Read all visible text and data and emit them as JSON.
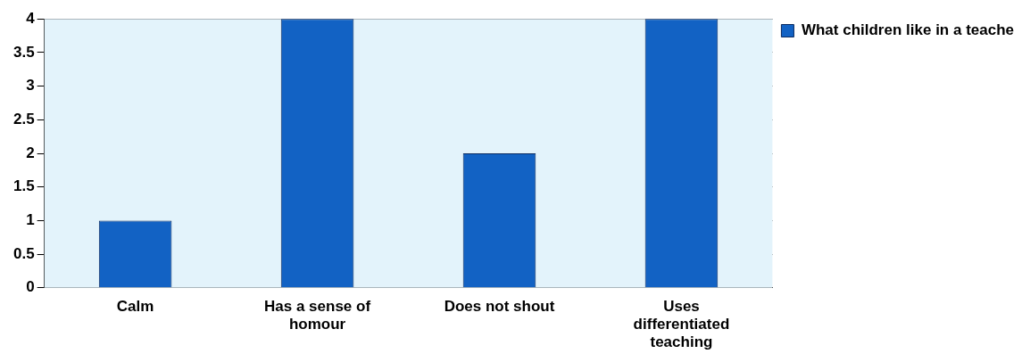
{
  "chart_data": {
    "type": "bar",
    "categories": [
      "Calm",
      "Has a sense of homour",
      "Does not shout",
      "Uses differentiated teaching"
    ],
    "series": [
      {
        "name": "What children like in a teache",
        "color": "#1262c4",
        "values": [
          1,
          4,
          2,
          4
        ]
      }
    ],
    "ylim": [
      0,
      4
    ],
    "yticks": [
      0,
      0.5,
      1,
      1.5,
      2,
      2.5,
      3,
      3.5,
      4
    ],
    "grid": "y",
    "legend": "top right"
  }
}
